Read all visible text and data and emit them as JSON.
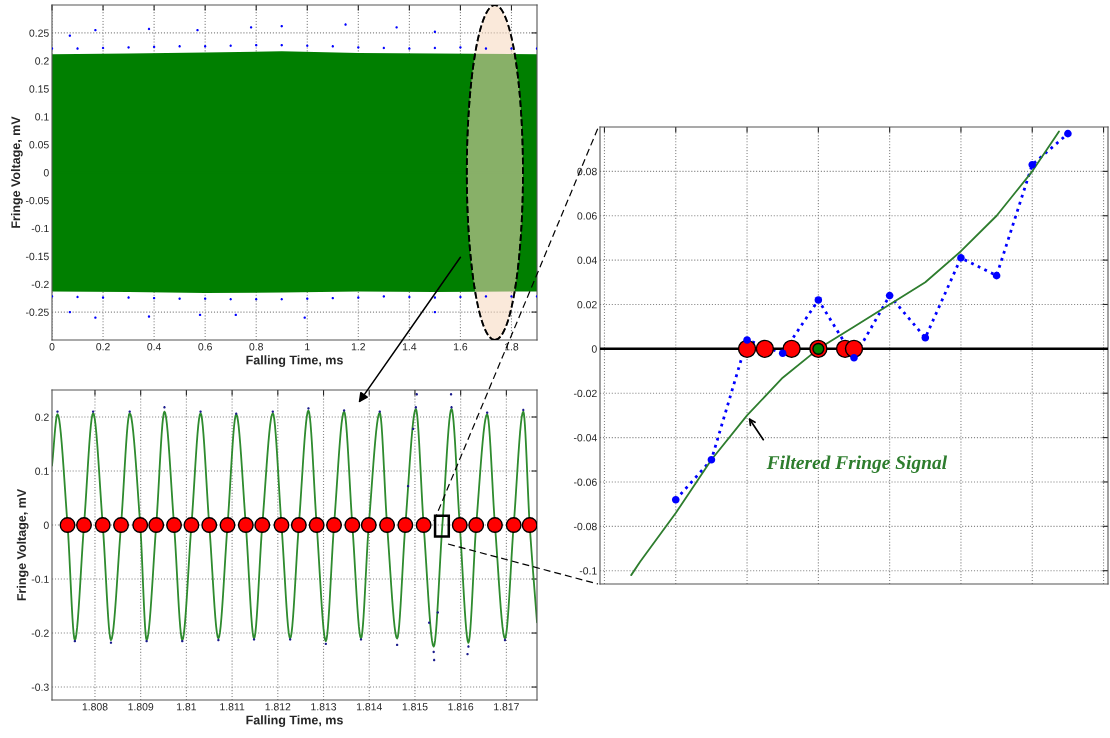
{
  "chart_data": [
    {
      "type": "line",
      "xlabel": "Falling Time, ms",
      "ylabel": "Fringe Voltage, mV",
      "xlim": [
        0,
        1.9
      ],
      "xticks": [
        0,
        0.2,
        0.4,
        0.6,
        0.8,
        1,
        1.2,
        1.4,
        1.6,
        1.8
      ],
      "ylim": [
        -0.3,
        0.3
      ],
      "yticks": [
        -0.25,
        -0.2,
        -0.15,
        -0.1,
        -0.05,
        0,
        0.05,
        0.1,
        0.15,
        0.2,
        0.25
      ],
      "grid": true,
      "series": [
        {
          "color": "#007f00",
          "x": [
            0,
            0.3,
            0.6,
            0.9,
            1.2,
            1.5,
            1.9
          ],
          "values": [
            0,
            0,
            0,
            0,
            0,
            0,
            0
          ],
          "lower": [
            -0.213,
            -0.214,
            -0.216,
            -0.215,
            -0.213,
            -0.214,
            -0.213
          ],
          "upper": [
            0.212,
            0.213,
            0.215,
            0.217,
            0.214,
            0.213,
            0.212
          ]
        },
        {
          "type": "scatter",
          "color": "#0000ff",
          "marker": "circle",
          "x": [
            0,
            0.1,
            0.2,
            0.3,
            0.4,
            0.5,
            0.6,
            0.7,
            0.8,
            0.9,
            1,
            1.1,
            1.2,
            1.3,
            1.4,
            1.5,
            1.6,
            1.7,
            1.8,
            1.9,
            0,
            0.1,
            0.2,
            0.3,
            0.4,
            0.5,
            0.6,
            0.7,
            0.8,
            0.9,
            1,
            1.1,
            1.2,
            1.3,
            1.4,
            1.5,
            1.6,
            1.7,
            1.8,
            1.9,
            0.07,
            0.17,
            0.38,
            0.57,
            0.78,
            0.9,
            1.15,
            1.35,
            1.5,
            0.07,
            0.17,
            0.38,
            0.58,
            0.72,
            0.99,
            1.5
          ],
          "values": [
            0.222,
            0.222,
            0.223,
            0.224,
            0.225,
            0.226,
            0.226,
            0.227,
            0.228,
            0.228,
            0.227,
            0.226,
            0.224,
            0.223,
            0.222,
            0.223,
            0.224,
            0.222,
            0.222,
            0.222,
            -0.222,
            -0.223,
            -0.224,
            -0.224,
            -0.225,
            -0.226,
            -0.226,
            -0.227,
            -0.227,
            -0.227,
            -0.226,
            -0.225,
            -0.224,
            -0.222,
            -0.223,
            -0.224,
            -0.223,
            -0.222,
            -0.222,
            -0.222,
            0.245,
            0.255,
            0.257,
            0.255,
            0.26,
            0.262,
            0.265,
            0.26,
            0.252,
            -0.25,
            -0.26,
            -0.258,
            -0.255,
            -0.255,
            -0.26,
            -0.25
          ]
        }
      ]
    },
    {
      "type": "line",
      "xlabel": "Falling Time, ms",
      "ylabel": "Fringe Voltage, mV",
      "xlim": [
        1.80706,
        1.81767
      ],
      "xticks": [
        1.808,
        1.809,
        1.81,
        1.811,
        1.812,
        1.813,
        1.814,
        1.815,
        1.816,
        1.817
      ],
      "ylim": [
        -0.324,
        0.25
      ],
      "yticks": [
        -0.3,
        -0.2,
        -0.1,
        0,
        0.1,
        0.2
      ],
      "grid": true,
      "series": [
        {
          "color": "#2e8b2e",
          "x": [
            1.80706,
            1.80718,
            1.8074,
            1.80756,
            1.80776,
            1.80796,
            1.80817,
            1.80835,
            1.80857,
            1.80876,
            1.80899,
            1.80913,
            1.80934,
            1.80952,
            1.80973,
            1.80991,
            1.81011,
            1.81031,
            1.8105,
            1.8107,
            1.8109,
            1.81109,
            1.8113,
            1.81148,
            1.81166,
            1.81189,
            1.81208,
            1.81227,
            1.81246,
            1.81267,
            1.81285,
            1.81305,
            1.81323,
            1.81345,
            1.81363,
            1.81382,
            1.81399,
            1.81423,
            1.81439,
            1.81461,
            1.81479,
            1.81502,
            1.81519,
            1.81541,
            1.8156,
            1.8158,
            1.81598,
            1.81617,
            1.81634,
            1.81658,
            1.81675,
            1.81697,
            1.81716,
            1.81737,
            1.81751,
            1.81767
          ],
          "values": [
            0.11,
            0.205,
            0,
            -0.213,
            0,
            0.207,
            0,
            -0.213,
            0,
            0.207,
            0,
            -0.213,
            0,
            0.21,
            0,
            -0.213,
            0,
            0.207,
            0,
            -0.21,
            0,
            0.205,
            0,
            -0.21,
            0,
            0.207,
            0,
            -0.21,
            0,
            0.212,
            0,
            -0.215,
            0,
            0.21,
            0,
            -0.21,
            0,
            0.208,
            0,
            -0.21,
            0,
            0.215,
            0,
            -0.225,
            0,
            0.215,
            0,
            -0.218,
            0,
            0.205,
            0,
            -0.21,
            0,
            0.21,
            0,
            -0.18
          ]
        },
        {
          "type": "scatter",
          "color": "#1a1a8c",
          "marker": "circle",
          "x": [
            1.80718,
            1.80796,
            1.80876,
            1.80952,
            1.81031,
            1.81109,
            1.81189,
            1.81267,
            1.81345,
            1.81423,
            1.81502,
            1.8158,
            1.81658,
            1.81737,
            1.80756,
            1.80835,
            1.80913,
            1.80991,
            1.8107,
            1.81148,
            1.81227,
            1.81305,
            1.81382,
            1.81461,
            1.81541,
            1.81617,
            1.81697,
            1.81504,
            1.81579,
            1.81542,
            1.81615,
            1.81496,
            1.81531,
            1.8155,
            1.81485
          ],
          "values": [
            0.21,
            0.21,
            0.21,
            0.218,
            0.21,
            0.206,
            0.21,
            0.216,
            0.212,
            0.21,
            0.218,
            0.218,
            0.208,
            0.213,
            -0.215,
            -0.218,
            -0.215,
            -0.215,
            -0.213,
            -0.212,
            -0.212,
            -0.22,
            -0.212,
            -0.222,
            -0.235,
            -0.225,
            -0.213,
            0.242,
            0.242,
            -0.25,
            -0.239,
            0.178,
            -0.181,
            -0.162,
            0.072
          ]
        },
        {
          "type": "scatter",
          "color": "#ff0000",
          "marker": "circle",
          "x": [
            1.8074,
            1.80776,
            1.80817,
            1.80857,
            1.80899,
            1.80934,
            1.80973,
            1.81011,
            1.8105,
            1.8109,
            1.8113,
            1.81166,
            1.81208,
            1.81246,
            1.81285,
            1.81323,
            1.81363,
            1.81399,
            1.81439,
            1.81479,
            1.81519,
            1.81598,
            1.81634,
            1.81675,
            1.81716,
            1.81751
          ],
          "values": [
            0,
            0,
            0,
            0,
            0,
            0,
            0,
            0,
            0,
            0,
            0,
            0,
            0,
            0,
            0,
            0,
            0,
            0,
            0,
            0,
            0,
            0,
            0,
            0,
            0,
            0
          ]
        }
      ]
    },
    {
      "type": "line",
      "categories": [
        null,
        null,
        null,
        null,
        null,
        null,
        null,
        null,
        null,
        null,
        null,
        null,
        null,
        null,
        null,
        null,
        null,
        null,
        null,
        null,
        null,
        null,
        null,
        null,
        null,
        null,
        null,
        null,
        null,
        null,
        null,
        null,
        null,
        null,
        null,
        null,
        null,
        null,
        null,
        null,
        null,
        null,
        null,
        null,
        null,
        null,
        null,
        null,
        null,
        null,
        null,
        null,
        null,
        null,
        null,
        null,
        null
      ],
      "ylim": [
        -0.106,
        0.1
      ],
      "yticks": [
        -0.1,
        -0.08,
        -0.06,
        -0.04,
        -0.02,
        0,
        0.02,
        0.04,
        0.06,
        0.08
      ],
      "grid": true,
      "tick_labels": "y",
      "ref_lines": [
        {
          "axis": "y",
          "value": 0,
          "color": "#000000"
        }
      ],
      "annotations": [
        "Filtered Fringe Signal"
      ],
      "series": [
        {
          "color": "#0000ff",
          "marker": "circle",
          "line_style": "dotted",
          "values": [
            null,
            null,
            null,
            null,
            null,
            null,
            null,
            null,
            -0.068,
            null,
            null,
            null,
            -0.05,
            null,
            null,
            null,
            0.004,
            null,
            null,
            null,
            -0.002,
            null,
            null,
            null,
            0.022,
            null,
            null,
            null,
            -0.004,
            null,
            null,
            null,
            0.024,
            null,
            null,
            null,
            0.005,
            null,
            null,
            null,
            0.041,
            null,
            null,
            null,
            0.033,
            null,
            null,
            null,
            0.083,
            null,
            null,
            null,
            0.097,
            null,
            null,
            null,
            null
          ]
        },
        {
          "color": "#2e7d2e",
          "values": [
            null,
            null,
            null,
            -0.102,
            -0.096,
            null,
            null,
            null,
            -0.074,
            null,
            null,
            null,
            -0.05,
            null,
            null,
            null,
            -0.03,
            null,
            null,
            null,
            -0.013,
            null,
            null,
            null,
            0,
            null,
            null,
            null,
            0.01,
            null,
            null,
            null,
            0.02,
            null,
            null,
            null,
            0.03,
            null,
            null,
            null,
            0.044,
            null,
            null,
            null,
            0.06,
            null,
            null,
            null,
            0.08,
            null,
            null,
            0.098,
            null,
            null,
            null,
            null,
            null
          ]
        },
        {
          "type": "scatter",
          "color": "#ff0000",
          "marker": "circle",
          "values": [
            null,
            null,
            null,
            null,
            null,
            null,
            null,
            null,
            null,
            null,
            null,
            null,
            null,
            null,
            null,
            null,
            0,
            null,
            0,
            null,
            null,
            0,
            null,
            null,
            0,
            null,
            null,
            0,
            0,
            null,
            null,
            null,
            null,
            null,
            null,
            null,
            null,
            null,
            null,
            null,
            null,
            null,
            null,
            null,
            null,
            null,
            null,
            null,
            null,
            null,
            null,
            null,
            null,
            null,
            null,
            null,
            null
          ]
        },
        {
          "type": "scatter",
          "color": "#008000",
          "marker": "circle",
          "values": [
            null,
            null,
            null,
            null,
            null,
            null,
            null,
            null,
            null,
            null,
            null,
            null,
            null,
            null,
            null,
            null,
            null,
            null,
            null,
            null,
            null,
            null,
            null,
            null,
            0,
            null,
            null,
            null,
            null,
            null,
            null,
            null,
            null,
            null,
            null,
            null,
            null,
            null,
            null,
            null,
            null,
            null,
            null,
            null,
            null,
            null,
            null,
            null,
            null,
            null,
            null,
            null,
            null,
            null,
            null,
            null,
            null
          ]
        }
      ]
    }
  ]
}
